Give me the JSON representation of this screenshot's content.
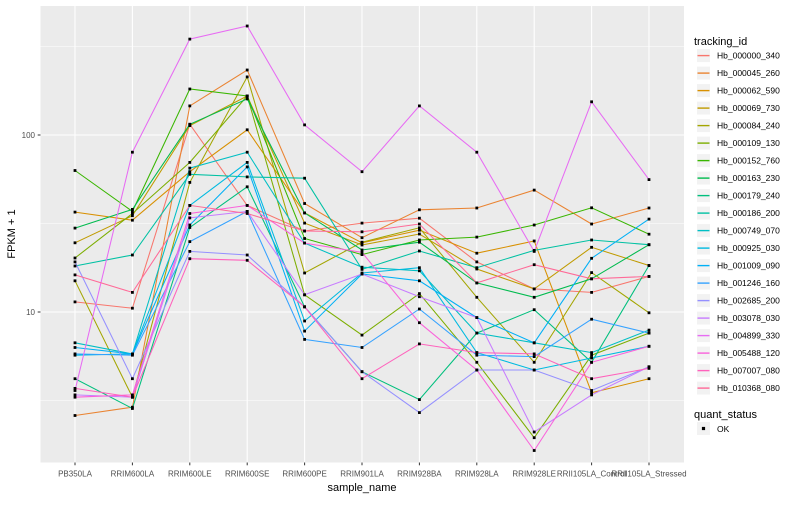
{
  "chart_data": {
    "type": "line",
    "title": "",
    "xlabel": "sample_name",
    "ylabel": "FPKM + 1",
    "y_scale": "log10",
    "y_ticks": [
      100,
      10
    ],
    "y_tick_labels": [
      "100",
      "10"
    ],
    "y_minor_gridlines": [
      3.1623,
      31.623,
      316.23
    ],
    "ylim": [
      1.42,
      536
    ],
    "grid": "on",
    "point_marker": "black-square",
    "categories": [
      "PB350LA",
      "RRIM600LA",
      "RRIM600LE",
      "RRIM600SE",
      "RRIM600PE",
      "RRIM901LA",
      "RRIM928BA",
      "RRIM928LA",
      "RRIM928LE",
      "RRII105LA_Control",
      "RRII105LA_Stressed"
    ],
    "legend": {
      "title": "tracking_id",
      "position": "right"
    },
    "quant_legend": {
      "title": "quant_status",
      "items": [
        {
          "label": "OK",
          "marker": "black-square"
        }
      ]
    },
    "colors": {
      "panel_bg": "#EBEBEB",
      "gridline": "#FFFFFF",
      "tick_text": "#4D4D4D",
      "point": "#000000",
      "legend_key_bg": "#F2F2F2"
    },
    "series": [
      {
        "name": "Hb_000000_340",
        "color": "#F8766D",
        "values": [
          11.4,
          10.5,
          115,
          40,
          28.7,
          31.8,
          33.9,
          19.2,
          13.5,
          12.9,
          15.9
        ]
      },
      {
        "name": "Hb_000045_260",
        "color": "#EA8331",
        "values": [
          2.6,
          2.9,
          146,
          233,
          41,
          26.3,
          37.8,
          38.7,
          48.8,
          31.4,
          38.7
        ]
      },
      {
        "name": "Hb_000062_590",
        "color": "#D89000",
        "values": [
          36.7,
          33,
          62,
          107,
          36.3,
          24.6,
          29,
          21.5,
          25.2,
          3.5,
          4.2
        ]
      },
      {
        "name": "Hb_000069_730",
        "color": "#C09B00",
        "values": [
          24.6,
          35,
          113,
          166,
          31.8,
          23.9,
          27.6,
          17.5,
          13.5,
          23.2,
          18.3
        ]
      },
      {
        "name": "Hb_000084_240",
        "color": "#A3A500",
        "values": [
          15,
          3.3,
          54,
          213,
          16.6,
          24.8,
          29.9,
          12.1,
          5.2,
          16.7,
          9.9
        ]
      },
      {
        "name": "Hb_000109_130",
        "color": "#7CAE00",
        "values": [
          20.2,
          36,
          70,
          166,
          12.5,
          7.4,
          12.7,
          5.2,
          1.95,
          5.7,
          7.6
        ]
      },
      {
        "name": "Hb_000152_760",
        "color": "#39B600",
        "values": [
          63,
          37,
          182,
          166,
          26,
          21.1,
          25.5,
          26.5,
          31,
          38.8,
          27.5
        ]
      },
      {
        "name": "Hb_000163_230",
        "color": "#00BB4E",
        "values": [
          29.8,
          38,
          115,
          160,
          36.3,
          22.4,
          24.8,
          14.6,
          12.1,
          15.4,
          24
        ]
      },
      {
        "name": "Hb_000179_240",
        "color": "#00BF7D",
        "values": [
          4.2,
          2.85,
          30,
          51,
          10.7,
          4.6,
          3.2,
          7.6,
          10.3,
          5.2,
          18.3
        ]
      },
      {
        "name": "Hb_000186_200",
        "color": "#00C1A3",
        "values": [
          18.2,
          21,
          60,
          58,
          57,
          17.4,
          22.1,
          17.8,
          22.3,
          25.5,
          24
        ]
      },
      {
        "name": "Hb_000749_070",
        "color": "#00BFC4",
        "values": [
          6.7,
          5.8,
          65,
          80,
          24.5,
          17.9,
          17.1,
          7.6,
          6.7,
          5.9,
          7.9
        ]
      },
      {
        "name": "Hb_000925_030",
        "color": "#00BAE0",
        "values": [
          5.7,
          5.8,
          40,
          70,
          8.9,
          16.6,
          17.8,
          5.9,
          4.7,
          5.5,
          6.4
        ]
      },
      {
        "name": "Hb_001009_090",
        "color": "#00B0F6",
        "values": [
          6.3,
          5.8,
          31,
          66,
          7.8,
          16.4,
          15.0,
          9.3,
          6.7,
          20.1,
          33.5
        ]
      },
      {
        "name": "Hb_001246_160",
        "color": "#35A2FF",
        "values": [
          5.8,
          5.7,
          25,
          37,
          7.0,
          6.3,
          10.4,
          5.7,
          5.6,
          9.1,
          7.6
        ]
      },
      {
        "name": "Hb_002685_200",
        "color": "#9590FF",
        "values": [
          19.2,
          4.2,
          22,
          21,
          10.7,
          4.6,
          2.7,
          4.7,
          4.7,
          3.6,
          4.9
        ]
      },
      {
        "name": "Hb_003078_030",
        "color": "#C77CFF",
        "values": [
          3.4,
          3.3,
          34,
          37,
          12.5,
          16.4,
          12.2,
          9.3,
          2.1,
          3.4,
          4.9
        ]
      },
      {
        "name": "Hb_004899_330",
        "color": "#E76BF3",
        "values": [
          3.6,
          80,
          348,
          413,
          114,
          62,
          146,
          80,
          22,
          154,
          56
        ]
      },
      {
        "name": "Hb_005488_120",
        "color": "#FA62DB",
        "values": [
          3.3,
          3.4,
          36,
          40,
          24.5,
          21.7,
          8.7,
          4.7,
          1.65,
          5.2,
          6.4
        ]
      },
      {
        "name": "Hb_007007_080",
        "color": "#FF62BC",
        "values": [
          3.7,
          3.3,
          20,
          19.6,
          10.7,
          4.2,
          6.6,
          5.9,
          5.8,
          4.2,
          4.8
        ]
      },
      {
        "name": "Hb_010368_080",
        "color": "#FF6A98",
        "values": [
          16.2,
          12.9,
          40,
          36,
          28.7,
          28.4,
          31.4,
          14.6,
          18.5,
          15.4,
          15.9
        ]
      }
    ]
  }
}
